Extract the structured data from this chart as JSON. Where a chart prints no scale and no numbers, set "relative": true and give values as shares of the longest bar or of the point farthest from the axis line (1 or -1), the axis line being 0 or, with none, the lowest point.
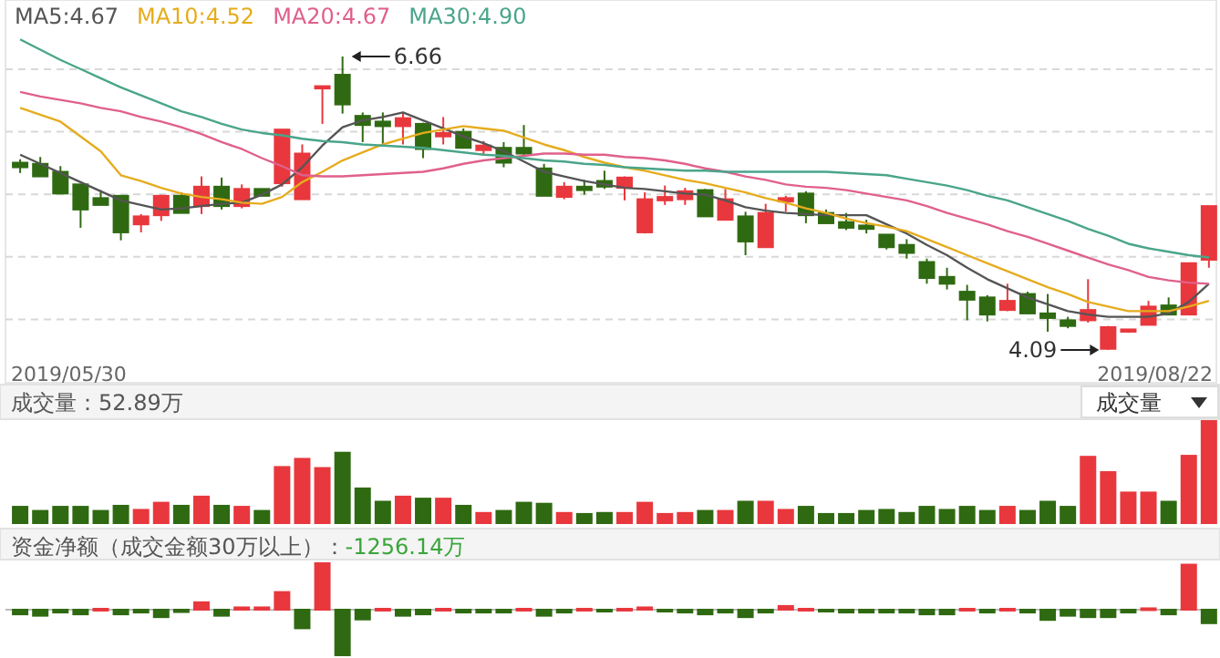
{
  "chart_data": [
    {
      "type": "candlestick",
      "categories": [
        null,
        null,
        null,
        null,
        null,
        null,
        null,
        null,
        null,
        null,
        null,
        null,
        null,
        null,
        null,
        null,
        null,
        null,
        null,
        null,
        null,
        null,
        null,
        null,
        null,
        null,
        null,
        null,
        null,
        null,
        null,
        null,
        null,
        null,
        null,
        null,
        null,
        null,
        null,
        null,
        null,
        null,
        null,
        null,
        null,
        null,
        null,
        null,
        null,
        null,
        null,
        null,
        null,
        null,
        null,
        null,
        null,
        null,
        null,
        null
      ],
      "ohlc": [
        [
          5.73,
          5.76,
          5.64,
          5.69
        ],
        [
          5.72,
          5.78,
          5.61,
          5.61
        ],
        [
          5.65,
          5.7,
          5.46,
          5.46
        ],
        [
          5.54,
          5.54,
          5.16,
          5.32
        ],
        [
          5.42,
          5.49,
          5.36,
          5.36
        ],
        [
          5.44,
          5.44,
          5.05,
          5.12
        ],
        [
          5.19,
          5.28,
          5.12,
          5.26
        ],
        [
          5.27,
          5.45,
          5.22,
          5.44
        ],
        [
          5.44,
          5.47,
          5.29,
          5.29
        ],
        [
          5.35,
          5.61,
          5.28,
          5.52
        ],
        [
          5.52,
          5.6,
          5.32,
          5.35
        ],
        [
          5.35,
          5.54,
          5.33,
          5.5
        ],
        [
          5.5,
          5.5,
          5.44,
          5.44
        ],
        [
          5.55,
          6.02,
          5.52,
          6.02
        ],
        [
          5.41,
          5.89,
          5.41,
          5.81
        ],
        [
          6.38,
          6.4,
          6.07,
          6.4
        ],
        [
          6.5,
          6.66,
          6.16,
          6.24
        ],
        [
          6.14,
          6.17,
          5.91,
          6.06
        ],
        [
          6.09,
          6.17,
          5.89,
          6.05
        ],
        [
          6.05,
          6.17,
          5.89,
          6.12
        ],
        [
          6.07,
          6.08,
          5.77,
          5.85
        ],
        [
          5.96,
          6.13,
          5.89,
          5.99
        ],
        [
          6.0,
          6.03,
          5.86,
          5.86
        ],
        [
          5.84,
          5.92,
          5.8,
          5.88
        ],
        [
          5.86,
          5.91,
          5.69,
          5.73
        ],
        [
          5.86,
          6.06,
          5.79,
          5.81
        ],
        [
          5.68,
          5.72,
          5.44,
          5.44
        ],
        [
          5.43,
          5.56,
          5.41,
          5.52
        ],
        [
          5.52,
          5.58,
          5.45,
          5.49
        ],
        [
          5.57,
          5.66,
          5.5,
          5.52
        ],
        [
          5.51,
          5.61,
          5.4,
          5.6
        ],
        [
          5.12,
          5.47,
          5.11,
          5.41
        ],
        [
          5.4,
          5.53,
          5.36,
          5.43
        ],
        [
          5.41,
          5.51,
          5.36,
          5.48
        ],
        [
          5.49,
          5.5,
          5.26,
          5.26
        ],
        [
          5.23,
          5.5,
          5.23,
          5.41
        ],
        [
          5.26,
          5.3,
          4.92,
          5.04
        ],
        [
          4.99,
          5.37,
          4.99,
          5.29
        ],
        [
          5.39,
          5.44,
          5.3,
          5.42
        ],
        [
          5.46,
          5.48,
          5.2,
          5.27
        ],
        [
          5.29,
          5.32,
          5.2,
          5.2
        ],
        [
          5.21,
          5.29,
          5.14,
          5.16
        ],
        [
          5.18,
          5.23,
          5.11,
          5.15
        ],
        [
          5.1,
          5.1,
          4.97,
          4.99
        ],
        [
          5.01,
          5.06,
          4.89,
          4.94
        ],
        [
          4.86,
          4.89,
          4.67,
          4.72
        ],
        [
          4.73,
          4.81,
          4.62,
          4.67
        ],
        [
          4.6,
          4.66,
          4.35,
          4.53
        ],
        [
          4.55,
          4.57,
          4.34,
          4.4
        ],
        [
          4.44,
          4.67,
          4.43,
          4.52
        ],
        [
          4.58,
          4.6,
          4.41,
          4.41
        ],
        [
          4.41,
          4.58,
          4.25,
          4.37
        ],
        [
          4.35,
          4.38,
          4.28,
          4.3
        ],
        [
          4.35,
          4.71,
          4.33,
          4.44
        ],
        [
          4.1,
          4.3,
          4.09,
          4.29
        ],
        [
          4.25,
          4.27,
          4.24,
          4.27
        ],
        [
          4.31,
          4.52,
          4.31,
          4.47
        ],
        [
          4.48,
          4.55,
          4.4,
          4.4
        ],
        [
          4.4,
          4.85,
          4.4,
          4.85
        ],
        [
          4.88,
          5.35,
          4.81,
          5.35
        ]
      ],
      "series": [
        {
          "name": "MA5:4.67",
          "type": "line",
          "color": "#555555",
          "values": [
            5.8,
            5.72,
            5.64,
            5.56,
            5.48,
            5.4,
            5.36,
            5.32,
            5.33,
            5.35,
            5.37,
            5.38,
            5.45,
            5.54,
            5.69,
            5.88,
            6.04,
            6.1,
            6.13,
            6.17,
            6.1,
            6.03,
            5.96,
            5.9,
            5.83,
            5.74,
            5.65,
            5.61,
            5.57,
            5.54,
            5.51,
            5.5,
            5.48,
            5.46,
            5.45,
            5.4,
            5.34,
            5.31,
            5.29,
            5.28,
            5.27,
            5.27,
            5.27,
            5.19,
            5.11,
            5.01,
            4.92,
            4.81,
            4.71,
            4.63,
            4.55,
            4.49,
            4.43,
            4.4,
            4.38,
            4.38,
            4.38,
            4.41,
            4.51,
            4.67
          ]
        },
        {
          "name": "MA10:4.52",
          "type": "line",
          "color": "#e6ac1e",
          "values": [
            6.21,
            6.15,
            6.09,
            5.96,
            5.83,
            5.62,
            5.57,
            5.51,
            5.46,
            5.43,
            5.41,
            5.38,
            5.37,
            5.43,
            5.56,
            5.65,
            5.75,
            5.82,
            5.89,
            5.94,
            5.99,
            6.02,
            6.05,
            6.03,
            6.01,
            5.95,
            5.89,
            5.84,
            5.78,
            5.73,
            5.69,
            5.66,
            5.62,
            5.58,
            5.55,
            5.51,
            5.47,
            5.42,
            5.38,
            5.33,
            5.29,
            5.24,
            5.2,
            5.17,
            5.13,
            5.06,
            4.99,
            4.92,
            4.85,
            4.78,
            4.71,
            4.64,
            4.58,
            4.51,
            4.47,
            4.43,
            4.43,
            4.43,
            4.47,
            4.52
          ]
        },
        {
          "name": "MA20:4.67",
          "type": "line",
          "color": "#e0608c",
          "values": [
            6.35,
            6.31,
            6.28,
            6.25,
            6.21,
            6.18,
            6.13,
            6.09,
            6.04,
            5.98,
            5.91,
            5.85,
            5.77,
            5.7,
            5.62,
            5.61,
            5.61,
            5.62,
            5.63,
            5.64,
            5.65,
            5.68,
            5.72,
            5.75,
            5.77,
            5.79,
            5.81,
            5.81,
            5.8,
            5.8,
            5.78,
            5.77,
            5.75,
            5.72,
            5.68,
            5.65,
            5.61,
            5.58,
            5.54,
            5.52,
            5.51,
            5.49,
            5.46,
            5.43,
            5.4,
            5.35,
            5.29,
            5.24,
            5.19,
            5.13,
            5.08,
            5.02,
            4.96,
            4.9,
            4.84,
            4.79,
            4.73,
            4.7,
            4.68,
            4.67
          ]
        },
        {
          "name": "MA30:4.90",
          "type": "line",
          "color": "#4aa58a",
          "values": [
            6.81,
            6.72,
            6.63,
            6.55,
            6.47,
            6.39,
            6.32,
            6.25,
            6.18,
            6.13,
            6.07,
            6.02,
            5.99,
            5.97,
            5.94,
            5.92,
            5.91,
            5.89,
            5.88,
            5.87,
            5.86,
            5.84,
            5.82,
            5.8,
            5.79,
            5.77,
            5.75,
            5.74,
            5.72,
            5.71,
            5.69,
            5.68,
            5.67,
            5.66,
            5.66,
            5.65,
            5.65,
            5.65,
            5.65,
            5.65,
            5.65,
            5.64,
            5.63,
            5.62,
            5.59,
            5.56,
            5.53,
            5.49,
            5.44,
            5.4,
            5.34,
            5.28,
            5.22,
            5.15,
            5.09,
            5.02,
            4.98,
            4.95,
            4.92,
            4.9
          ]
        }
      ],
      "grid": true,
      "legend": "top left",
      "annotations": [
        "6.66",
        "4.09",
        "2019/05/30",
        "2019/08/22"
      ]
    },
    {
      "type": "bar",
      "title": "成交量：52.89万",
      "relative": true,
      "categories": [
        null,
        null,
        null,
        null,
        null,
        null,
        null,
        null,
        null,
        null,
        null,
        null,
        null,
        null,
        null,
        null,
        null,
        null,
        null,
        null,
        null,
        null,
        null,
        null,
        null,
        null,
        null,
        null,
        null,
        null,
        null,
        null,
        null,
        null,
        null,
        null,
        null,
        null,
        null,
        null,
        null,
        null,
        null,
        null,
        null,
        null,
        null,
        null,
        null,
        null,
        null,
        null,
        null,
        null,
        null,
        null,
        null,
        null,
        null,
        null
      ],
      "values": [
        0.16,
        0.12,
        0.16,
        0.16,
        0.12,
        0.17,
        0.13,
        0.2,
        0.17,
        0.26,
        0.17,
        0.16,
        0.12,
        0.55,
        0.63,
        0.54,
        0.69,
        0.34,
        0.21,
        0.26,
        0.24,
        0.24,
        0.17,
        0.1,
        0.12,
        0.2,
        0.19,
        0.1,
        0.09,
        0.1,
        0.1,
        0.2,
        0.09,
        0.1,
        0.12,
        0.12,
        0.21,
        0.21,
        0.13,
        0.16,
        0.09,
        0.09,
        0.12,
        0.13,
        0.1,
        0.16,
        0.13,
        0.16,
        0.12,
        0.16,
        0.12,
        0.21,
        0.16,
        0.65,
        0.5,
        0.3,
        0.3,
        0.21,
        0.66,
        1
      ],
      "colors": [
        "#2f6a12",
        "#2f6a12",
        "#2f6a12",
        "#2f6a12",
        "#2f6a12",
        "#2f6a12",
        "#e8383d",
        "#e8383d",
        "#2f6a12",
        "#e8383d",
        "#2f6a12",
        "#e8383d",
        "#2f6a12",
        "#e8383d",
        "#e8383d",
        "#e8383d",
        "#2f6a12",
        "#2f6a12",
        "#2f6a12",
        "#e8383d",
        "#2f6a12",
        "#e8383d",
        "#2f6a12",
        "#e8383d",
        "#2f6a12",
        "#2f6a12",
        "#2f6a12",
        "#e8383d",
        "#2f6a12",
        "#2f6a12",
        "#e8383d",
        "#e8383d",
        "#e8383d",
        "#e8383d",
        "#2f6a12",
        "#e8383d",
        "#2f6a12",
        "#e8383d",
        "#e8383d",
        "#2f6a12",
        "#2f6a12",
        "#2f6a12",
        "#2f6a12",
        "#2f6a12",
        "#2f6a12",
        "#2f6a12",
        "#2f6a12",
        "#2f6a12",
        "#2f6a12",
        "#e8383d",
        "#2f6a12",
        "#2f6a12",
        "#2f6a12",
        "#e8383d",
        "#e8383d",
        "#e8383d",
        "#e8383d",
        "#2f6a12",
        "#e8383d",
        "#e8383d"
      ],
      "annotations": [
        "成交量"
      ]
    },
    {
      "type": "bar",
      "title": "资金净额（成交金额30万以上）：",
      "subtitle": "-1256.14万",
      "relative": true,
      "categories": [
        null,
        null,
        null,
        null,
        null,
        null,
        null,
        null,
        null,
        null,
        null,
        null,
        null,
        null,
        null,
        null,
        null,
        null,
        null,
        null,
        null,
        null,
        null,
        null,
        null,
        null,
        null,
        null,
        null,
        null,
        null,
        null,
        null,
        null,
        null,
        null,
        null,
        null,
        null,
        null,
        null,
        null,
        null,
        null,
        null,
        null,
        null,
        null,
        null,
        null,
        null,
        null,
        null,
        null,
        null,
        null,
        null,
        null,
        null,
        null
      ],
      "values": [
        -0.1,
        -0.13,
        -0.06,
        -0.1,
        0.02,
        -0.1,
        -0.06,
        -0.16,
        -0.05,
        0.16,
        -0.13,
        0.05,
        0.05,
        0.38,
        -0.4,
        1,
        -0.98,
        -0.21,
        0.02,
        -0.13,
        -0.1,
        0.02,
        -0.06,
        -0.06,
        -0.06,
        0.02,
        -0.13,
        -0.06,
        0.02,
        -0.02,
        0.02,
        0.05,
        -0.02,
        -0.06,
        -0.1,
        -0.06,
        -0.16,
        -0.06,
        0.08,
        0.02,
        -0.02,
        -0.06,
        -0.06,
        -0.06,
        -0.06,
        -0.1,
        -0.1,
        0.02,
        -0.06,
        0.02,
        -0.06,
        -0.22,
        -0.13,
        -0.16,
        -0.16,
        -0.06,
        0.03,
        -0.1,
        0.97,
        -0.29
      ],
      "colors": [
        "#2f6a12",
        "#2f6a12",
        "#2f6a12",
        "#2f6a12",
        "#e8383d",
        "#2f6a12",
        "#2f6a12",
        "#2f6a12",
        "#2f6a12",
        "#e8383d",
        "#2f6a12",
        "#e8383d",
        "#e8383d",
        "#e8383d",
        "#2f6a12",
        "#e8383d",
        "#2f6a12",
        "#2f6a12",
        "#e8383d",
        "#2f6a12",
        "#2f6a12",
        "#e8383d",
        "#2f6a12",
        "#2f6a12",
        "#2f6a12",
        "#e8383d",
        "#2f6a12",
        "#2f6a12",
        "#e8383d",
        "#2f6a12",
        "#e8383d",
        "#e8383d",
        "#2f6a12",
        "#2f6a12",
        "#2f6a12",
        "#2f6a12",
        "#2f6a12",
        "#2f6a12",
        "#e8383d",
        "#e8383d",
        "#2f6a12",
        "#2f6a12",
        "#2f6a12",
        "#2f6a12",
        "#2f6a12",
        "#2f6a12",
        "#2f6a12",
        "#e8383d",
        "#2f6a12",
        "#e8383d",
        "#2f6a12",
        "#2f6a12",
        "#2f6a12",
        "#2f6a12",
        "#2f6a12",
        "#2f6a12",
        "#e8383d",
        "#2f6a12",
        "#e8383d",
        "#2f6a12"
      ]
    }
  ]
}
